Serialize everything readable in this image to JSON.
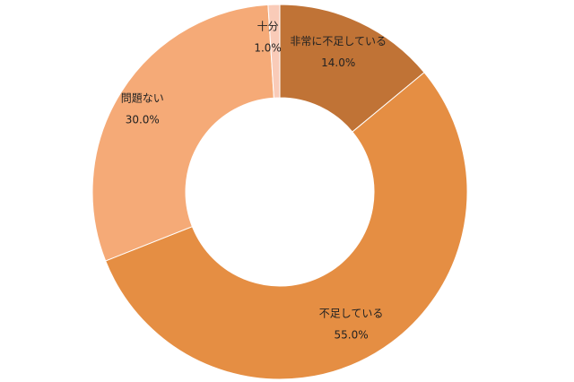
{
  "chart_data": {
    "type": "donut",
    "categories": [
      "非常に不足している",
      "不足している",
      "問題ない",
      "十分"
    ],
    "values": [
      14.0,
      55.0,
      30.0,
      1.0
    ],
    "value_labels": [
      "14.0%",
      "55.0%",
      "30.0%",
      "1.0%"
    ],
    "colors": [
      "#c07336",
      "#e58e43",
      "#f5aa77",
      "#f9cbb8"
    ]
  }
}
